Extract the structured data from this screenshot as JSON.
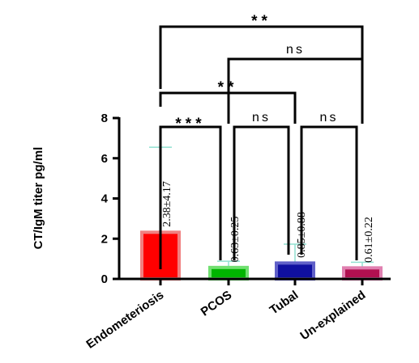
{
  "chart_data": {
    "type": "bar",
    "title": "",
    "xlabel": "",
    "ylabel": "CT/IgM titer pg/ml",
    "ylim": [
      0,
      8
    ],
    "yticks": [
      0,
      2,
      4,
      6,
      8
    ],
    "categories": [
      "Endometeriosis",
      "PCOS",
      "Tubal",
      "Un-explained"
    ],
    "values": [
      2.38,
      0.63,
      0.85,
      0.61
    ],
    "errors": [
      4.17,
      0.25,
      0.88,
      0.22
    ],
    "data_labels": [
      "2.38±4.17",
      "0.63±0.25",
      "0.85±0.88",
      "0.61±0.22"
    ],
    "bar_fill_colors": [
      "#ff0000",
      "#00b400",
      "#1010a0",
      "#b01050"
    ],
    "bar_edge_colors": [
      "#f08080",
      "#70e070",
      "#6060c8",
      "#e080b0"
    ],
    "error_bar_color": "#90e0d0",
    "grid": false,
    "comparisons": [
      {
        "from": 0,
        "to": 3,
        "label": "**"
      },
      {
        "from": 1,
        "to": 3,
        "label": "ns"
      },
      {
        "from": 0,
        "to": 2,
        "label": "**"
      },
      {
        "from": 0,
        "to": 1,
        "label": "***"
      },
      {
        "from": 1,
        "to": 2,
        "label": "ns"
      },
      {
        "from": 2,
        "to": 3,
        "label": "ns"
      }
    ]
  }
}
